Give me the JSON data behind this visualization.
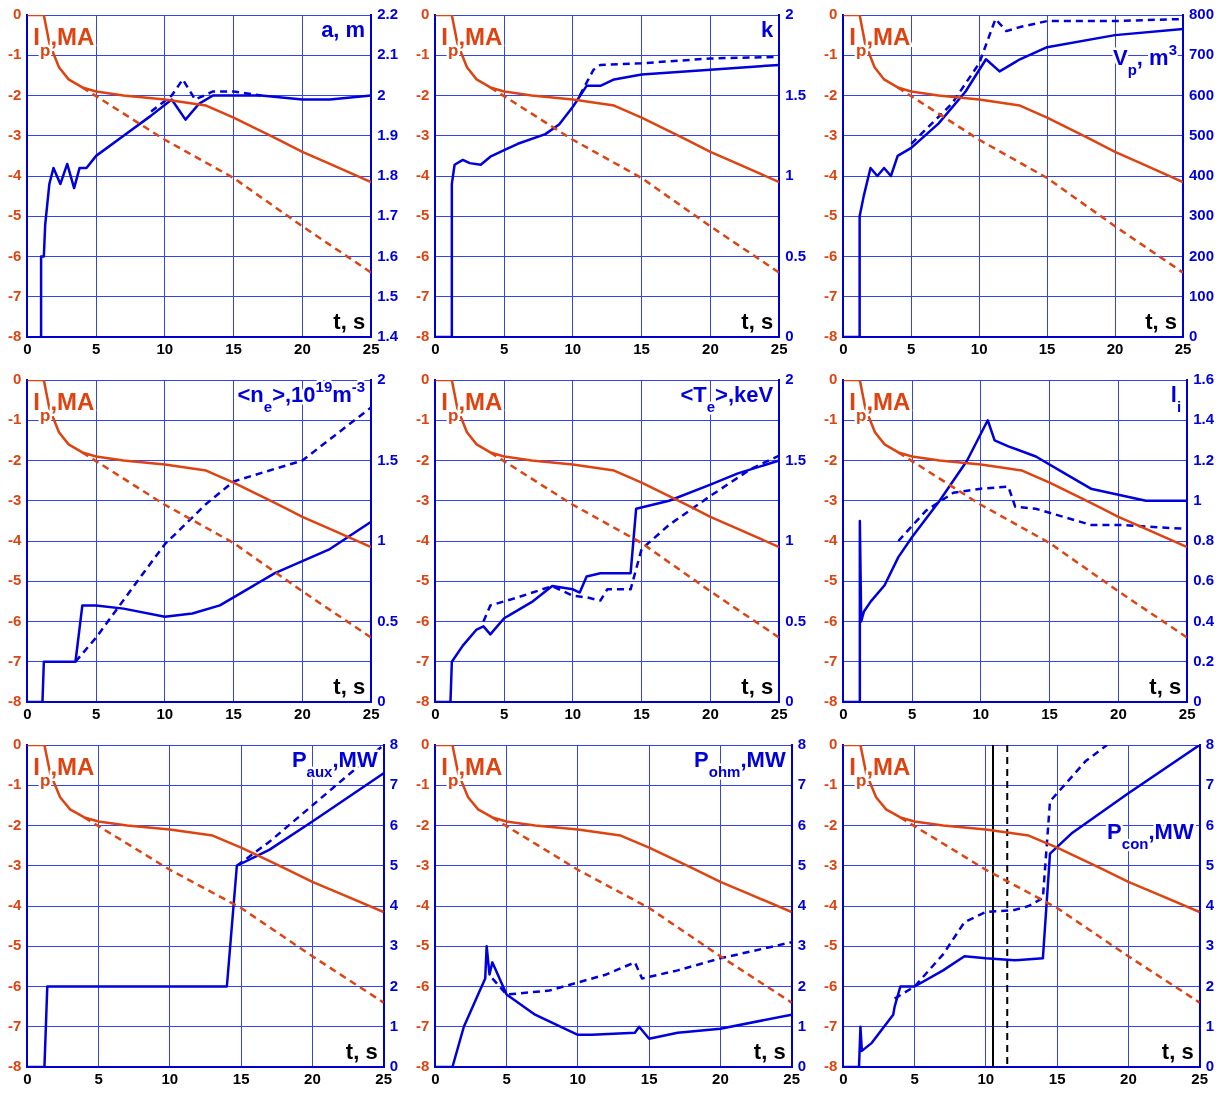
{
  "chart_data": [
    {
      "type": "line",
      "xlabel": "t, s",
      "ylabel": "I$_{p}$,MA",
      "y2label": "a, m",
      "xlim": [
        0,
        25
      ],
      "xticks": [
        0,
        5,
        10,
        15,
        20,
        25
      ],
      "ylim": [
        -8,
        0
      ],
      "yticks": [
        -8,
        -7,
        -6,
        -5,
        -4,
        -3,
        -2,
        -1,
        0
      ],
      "y2lim": [
        1.4,
        2.2
      ],
      "y2ticks": [
        1.4,
        1.5,
        1.6,
        1.7,
        1.8,
        1.9,
        2,
        2.1,
        2.2
      ],
      "grid": true,
      "marker": "none",
      "series": [
        {
          "color": "#dd4411",
          "line_style": "solid",
          "axis": "y",
          "x": [
            0,
            1.2,
            1.6,
            2.3,
            3,
            4,
            5,
            7,
            10,
            12,
            13,
            15,
            18,
            20,
            22,
            25
          ],
          "values": [
            0,
            0,
            -0.7,
            -1.3,
            -1.6,
            -1.8,
            -1.9,
            -2,
            -2.1,
            -2.2,
            -2.25,
            -2.55,
            -3.05,
            -3.4,
            -3.7,
            -4.15
          ]
        },
        {
          "color": "#dd4411",
          "line_style": "dashed",
          "axis": "y",
          "x": [
            4,
            10,
            15,
            20,
            25
          ],
          "values": [
            -1.8,
            -3.1,
            -4.05,
            -5.25,
            -6.4
          ]
        },
        {
          "color": "#0000dd",
          "line_style": "solid",
          "axis": "y2",
          "x": [
            1,
            1,
            1.2,
            1.3,
            1.6,
            1.9,
            2.4,
            2.9,
            3.4,
            3.8,
            4.3,
            5,
            7,
            9,
            10.5,
            11.5,
            12.5,
            13.5,
            17,
            20,
            22,
            25
          ],
          "values": [
            1.4,
            1.6,
            1.6,
            1.68,
            1.78,
            1.82,
            1.78,
            1.83,
            1.77,
            1.82,
            1.82,
            1.85,
            1.9,
            1.95,
            1.99,
            1.94,
            1.98,
            2,
            2,
            1.99,
            1.99,
            2
          ]
        },
        {
          "color": "#0000dd",
          "line_style": "dashed",
          "axis": "y2",
          "x": [
            9,
            10.5,
            11.3,
            12.2,
            13.5,
            15,
            17
          ],
          "values": [
            1.96,
            2,
            2.04,
            1.99,
            2.01,
            2.01,
            2
          ]
        }
      ]
    },
    {
      "type": "line",
      "xlabel": "t, s",
      "ylabel": "I$_{p}$,MA",
      "y2label": "k",
      "xlim": [
        0,
        25
      ],
      "xticks": [
        0,
        5,
        10,
        15,
        20,
        25
      ],
      "ylim": [
        -8,
        0
      ],
      "yticks": [
        -8,
        -7,
        -6,
        -5,
        -4,
        -3,
        -2,
        -1,
        0
      ],
      "y2lim": [
        0,
        2
      ],
      "y2ticks": [
        0,
        0.5,
        1,
        1.5,
        2
      ],
      "grid": true,
      "marker": "none",
      "series": [
        {
          "color": "#dd4411",
          "line_style": "solid",
          "axis": "y",
          "x": [
            0,
            1.2,
            1.6,
            2.3,
            3,
            4,
            5,
            7,
            10,
            12,
            13,
            15,
            18,
            20,
            22,
            25
          ],
          "values": [
            0,
            0,
            -0.7,
            -1.3,
            -1.6,
            -1.8,
            -1.9,
            -2,
            -2.1,
            -2.2,
            -2.25,
            -2.55,
            -3.05,
            -3.4,
            -3.7,
            -4.15
          ]
        },
        {
          "color": "#dd4411",
          "line_style": "dashed",
          "axis": "y",
          "x": [
            4,
            10,
            15,
            20,
            25
          ],
          "values": [
            -1.8,
            -3.1,
            -4.05,
            -5.25,
            -6.4
          ]
        },
        {
          "color": "#0000dd",
          "line_style": "solid",
          "axis": "y2",
          "x": [
            0,
            1.2,
            1.2,
            1.4,
            2,
            2.5,
            3.3,
            4,
            6,
            8,
            9,
            10,
            11,
            12,
            13,
            15,
            20,
            25
          ],
          "values": [
            0,
            0,
            0.95,
            1.07,
            1.1,
            1.08,
            1.07,
            1.12,
            1.2,
            1.26,
            1.32,
            1.43,
            1.56,
            1.56,
            1.6,
            1.63,
            1.66,
            1.69
          ]
        },
        {
          "color": "#0000dd",
          "line_style": "dashed",
          "axis": "y2",
          "x": [
            10.5,
            11.5,
            12,
            15,
            20,
            25
          ],
          "values": [
            1.5,
            1.66,
            1.69,
            1.7,
            1.73,
            1.74
          ]
        }
      ]
    },
    {
      "type": "line",
      "xlabel": "t, s",
      "ylabel": "I$_{p}$,MA",
      "y2label": "V$_{p}$, m$^{3}$",
      "xlim": [
        0,
        25
      ],
      "xticks": [
        0,
        5,
        10,
        15,
        20,
        25
      ],
      "ylim": [
        -8,
        0
      ],
      "yticks": [
        -8,
        -7,
        -6,
        -5,
        -4,
        -3,
        -2,
        -1,
        0
      ],
      "y2lim": [
        0,
        800
      ],
      "y2ticks": [
        0,
        100,
        200,
        300,
        400,
        500,
        600,
        700,
        800
      ],
      "grid": true,
      "marker": "none",
      "series": [
        {
          "color": "#dd4411",
          "line_style": "solid",
          "axis": "y",
          "x": [
            0,
            1.2,
            1.6,
            2.3,
            3,
            4,
            5,
            7,
            10,
            12,
            13,
            15,
            18,
            20,
            22,
            25
          ],
          "values": [
            0,
            0,
            -0.7,
            -1.3,
            -1.6,
            -1.8,
            -1.9,
            -2,
            -2.1,
            -2.2,
            -2.25,
            -2.55,
            -3.05,
            -3.4,
            -3.7,
            -4.15
          ]
        },
        {
          "color": "#dd4411",
          "line_style": "dashed",
          "axis": "y",
          "x": [
            4,
            10,
            15,
            20,
            25
          ],
          "values": [
            -1.8,
            -3.1,
            -4.05,
            -5.25,
            -6.4
          ]
        },
        {
          "color": "#0000dd",
          "line_style": "solid",
          "axis": "y2",
          "x": [
            0,
            1.2,
            1.2,
            1.5,
            2,
            2.5,
            3,
            3.5,
            4,
            5,
            7,
            9,
            10.5,
            11.5,
            12,
            13,
            15,
            20,
            25
          ],
          "values": [
            0,
            0,
            300,
            350,
            420,
            400,
            420,
            400,
            450,
            470,
            530,
            610,
            690,
            660,
            670,
            690,
            720,
            750,
            765
          ]
        },
        {
          "color": "#0000dd",
          "line_style": "dashed",
          "axis": "y2",
          "x": [
            5,
            8,
            10,
            11.2,
            12,
            13,
            15,
            20,
            25
          ],
          "values": [
            480,
            580,
            680,
            790,
            760,
            770,
            785,
            785,
            790
          ]
        }
      ]
    },
    {
      "type": "line",
      "xlabel": "t, s",
      "ylabel": "I$_{p}$,MA",
      "y2label": "<n$_{e}$>,10$^{19}$m$^{-3}$",
      "xlim": [
        0,
        25
      ],
      "xticks": [
        0,
        5,
        10,
        15,
        20,
        25
      ],
      "ylim": [
        -8,
        0
      ],
      "yticks": [
        -8,
        -7,
        -6,
        -5,
        -4,
        -3,
        -2,
        -1,
        0
      ],
      "y2lim": [
        0,
        2
      ],
      "y2ticks": [
        0,
        0.5,
        1,
        1.5,
        2
      ],
      "grid": true,
      "marker": "none",
      "series": [
        {
          "color": "#dd4411",
          "line_style": "solid",
          "axis": "y",
          "x": [
            0,
            1.2,
            1.6,
            2.3,
            3,
            4,
            5,
            7,
            10,
            12,
            13,
            15,
            18,
            20,
            22,
            25
          ],
          "values": [
            0,
            0,
            -0.7,
            -1.3,
            -1.6,
            -1.8,
            -1.9,
            -2,
            -2.1,
            -2.2,
            -2.25,
            -2.55,
            -3.05,
            -3.4,
            -3.7,
            -4.15
          ]
        },
        {
          "color": "#dd4411",
          "line_style": "dashed",
          "axis": "y",
          "x": [
            4,
            10,
            15,
            20,
            25
          ],
          "values": [
            -1.8,
            -3.1,
            -4.05,
            -5.25,
            -6.4
          ]
        },
        {
          "color": "#0000dd",
          "line_style": "solid",
          "axis": "y2",
          "x": [
            0,
            1.1,
            1.2,
            1.5,
            3.5,
            4,
            5,
            7,
            10,
            12,
            14,
            18,
            22,
            25
          ],
          "values": [
            0,
            0,
            0.25,
            0.25,
            0.25,
            0.6,
            0.6,
            0.58,
            0.53,
            0.55,
            0.6,
            0.8,
            0.95,
            1.12
          ]
        },
        {
          "color": "#0000dd",
          "line_style": "dashed",
          "axis": "y2",
          "x": [
            3.5,
            5,
            8,
            10,
            13,
            15,
            20,
            25
          ],
          "values": [
            0.25,
            0.4,
            0.75,
            0.98,
            1.23,
            1.37,
            1.5,
            1.83
          ]
        }
      ]
    },
    {
      "type": "line",
      "xlabel": "t, s",
      "ylabel": "I$_{p}$,MA",
      "y2label": "<T$_{e}$>,keV",
      "xlim": [
        0,
        25
      ],
      "xticks": [
        0,
        5,
        10,
        15,
        20,
        25
      ],
      "ylim": [
        -8,
        0
      ],
      "yticks": [
        -8,
        -7,
        -6,
        -5,
        -4,
        -3,
        -2,
        -1,
        0
      ],
      "y2lim": [
        0,
        2
      ],
      "y2ticks": [
        0,
        0.5,
        1,
        1.5,
        2
      ],
      "grid": true,
      "marker": "none",
      "series": [
        {
          "color": "#dd4411",
          "line_style": "solid",
          "axis": "y",
          "x": [
            0,
            1.2,
            1.6,
            2.3,
            3,
            4,
            5,
            7,
            10,
            12,
            13,
            15,
            18,
            20,
            22,
            25
          ],
          "values": [
            0,
            0,
            -0.7,
            -1.3,
            -1.6,
            -1.8,
            -1.9,
            -2,
            -2.1,
            -2.2,
            -2.25,
            -2.55,
            -3.05,
            -3.4,
            -3.7,
            -4.15
          ]
        },
        {
          "color": "#dd4411",
          "line_style": "dashed",
          "axis": "y",
          "x": [
            4,
            10,
            15,
            20,
            25
          ],
          "values": [
            -1.8,
            -3.1,
            -4.05,
            -5.25,
            -6.4
          ]
        },
        {
          "color": "#0000dd",
          "line_style": "solid",
          "axis": "y2",
          "x": [
            0,
            1.1,
            1.2,
            2,
            3,
            3.5,
            4,
            5,
            7,
            8.5,
            10,
            10.5,
            11,
            12,
            14.2,
            14.6,
            17,
            20,
            22,
            25
          ],
          "values": [
            0,
            0,
            0.25,
            0.35,
            0.45,
            0.47,
            0.42,
            0.52,
            0.62,
            0.72,
            0.7,
            0.68,
            0.78,
            0.8,
            0.8,
            1.2,
            1.25,
            1.35,
            1.42,
            1.5
          ]
        },
        {
          "color": "#0000dd",
          "line_style": "dashed",
          "axis": "y2",
          "x": [
            3.5,
            4,
            6,
            8.5,
            10,
            11,
            12,
            12.5,
            14.2,
            15,
            17,
            20,
            23,
            25
          ],
          "values": [
            0.5,
            0.6,
            0.65,
            0.72,
            0.66,
            0.65,
            0.63,
            0.7,
            0.7,
            0.95,
            1.1,
            1.28,
            1.45,
            1.53
          ]
        }
      ]
    },
    {
      "type": "line",
      "xlabel": "t, s",
      "ylabel": "I$_{p}$,MA",
      "y2label": "l$_{i}$",
      "xlim": [
        0,
        25
      ],
      "xticks": [
        0,
        5,
        10,
        15,
        20,
        25
      ],
      "ylim": [
        -8,
        0
      ],
      "yticks": [
        -8,
        -7,
        -6,
        -5,
        -4,
        -3,
        -2,
        -1,
        0
      ],
      "y2lim": [
        0,
        1.6
      ],
      "y2ticks": [
        0,
        0.2,
        0.4,
        0.6,
        0.8,
        1,
        1.2,
        1.4,
        1.6
      ],
      "grid": true,
      "marker": "none",
      "series": [
        {
          "color": "#dd4411",
          "line_style": "solid",
          "axis": "y",
          "x": [
            0,
            1.2,
            1.6,
            2.3,
            3,
            4,
            5,
            7,
            10,
            12,
            13,
            15,
            18,
            20,
            22,
            25
          ],
          "values": [
            0,
            0,
            -0.7,
            -1.3,
            -1.6,
            -1.8,
            -1.9,
            -2,
            -2.1,
            -2.2,
            -2.25,
            -2.55,
            -3.05,
            -3.4,
            -3.7,
            -4.15
          ]
        },
        {
          "color": "#dd4411",
          "line_style": "dashed",
          "axis": "y",
          "x": [
            4,
            10,
            15,
            20,
            25
          ],
          "values": [
            -1.8,
            -3.1,
            -4.05,
            -5.25,
            -6.4
          ]
        },
        {
          "color": "#0000dd",
          "line_style": "solid",
          "axis": "y2",
          "x": [
            0,
            1.2,
            1.2,
            1.3,
            1.5,
            2,
            3,
            4,
            5,
            7,
            9,
            10.5,
            11,
            12,
            14,
            16,
            18,
            20,
            22,
            25
          ],
          "values": [
            0,
            0,
            0.9,
            0.4,
            0.45,
            0.5,
            0.58,
            0.72,
            0.82,
            1,
            1.2,
            1.4,
            1.3,
            1.27,
            1.22,
            1.14,
            1.06,
            1.03,
            1,
            1
          ]
        },
        {
          "color": "#0000dd",
          "line_style": "dashed",
          "axis": "y2",
          "x": [
            4,
            6,
            8,
            10,
            12,
            12.5,
            14,
            16,
            18,
            20,
            25
          ],
          "values": [
            0.8,
            0.95,
            1.04,
            1.06,
            1.07,
            0.97,
            0.96,
            0.92,
            0.88,
            0.88,
            0.86
          ]
        }
      ]
    },
    {
      "type": "line",
      "xlabel": "t, s",
      "ylabel": "I$_{p}$,MA",
      "y2label": "P$_{aux}$,MW",
      "xlim": [
        0,
        25
      ],
      "xticks": [
        0,
        5,
        10,
        15,
        20,
        25
      ],
      "ylim": [
        -8,
        0
      ],
      "yticks": [
        -8,
        -7,
        -6,
        -5,
        -4,
        -3,
        -2,
        -1,
        0
      ],
      "y2lim": [
        0,
        8
      ],
      "y2ticks": [
        0,
        1,
        2,
        3,
        4,
        5,
        6,
        7,
        8
      ],
      "grid": true,
      "marker": "none",
      "series": [
        {
          "color": "#dd4411",
          "line_style": "solid",
          "axis": "y",
          "x": [
            0,
            1.2,
            1.6,
            2.3,
            3,
            4,
            5,
            7,
            10,
            12,
            13,
            15,
            18,
            20,
            22,
            25
          ],
          "values": [
            0,
            0,
            -0.7,
            -1.3,
            -1.6,
            -1.8,
            -1.9,
            -2,
            -2.1,
            -2.2,
            -2.25,
            -2.55,
            -3.05,
            -3.4,
            -3.7,
            -4.15
          ]
        },
        {
          "color": "#dd4411",
          "line_style": "dashed",
          "axis": "y",
          "x": [
            4,
            10,
            15,
            20,
            25
          ],
          "values": [
            -1.8,
            -3.1,
            -4.05,
            -5.25,
            -6.4
          ]
        },
        {
          "color": "#0000dd",
          "line_style": "solid",
          "axis": "y2",
          "x": [
            0,
            1.2,
            1.4,
            14,
            14.7,
            17,
            20,
            25
          ],
          "values": [
            0,
            0,
            2,
            2,
            5,
            5.4,
            6.1,
            7.3
          ]
        },
        {
          "color": "#0000dd",
          "line_style": "dashed",
          "axis": "y2",
          "x": [
            14.7,
            17,
            20,
            25
          ],
          "values": [
            5,
            5.6,
            6.5,
            8
          ]
        }
      ]
    },
    {
      "type": "line",
      "xlabel": "t, s",
      "ylabel": "I$_{p}$,MA",
      "y2label": "P$_{ohm}$,MW",
      "xlim": [
        0,
        25
      ],
      "xticks": [
        0,
        5,
        10,
        15,
        20,
        25
      ],
      "ylim": [
        -8,
        0
      ],
      "yticks": [
        -8,
        -7,
        -6,
        -5,
        -4,
        -3,
        -2,
        -1,
        0
      ],
      "y2lim": [
        0,
        8
      ],
      "y2ticks": [
        0,
        1,
        2,
        3,
        4,
        5,
        6,
        7,
        8
      ],
      "grid": true,
      "marker": "none",
      "series": [
        {
          "color": "#dd4411",
          "line_style": "solid",
          "axis": "y",
          "x": [
            0,
            1.2,
            1.6,
            2.3,
            3,
            4,
            5,
            7,
            10,
            12,
            13,
            15,
            18,
            20,
            22,
            25
          ],
          "values": [
            0,
            0,
            -0.7,
            -1.3,
            -1.6,
            -1.8,
            -1.9,
            -2,
            -2.1,
            -2.2,
            -2.25,
            -2.55,
            -3.05,
            -3.4,
            -3.7,
            -4.15
          ]
        },
        {
          "color": "#dd4411",
          "line_style": "dashed",
          "axis": "y",
          "x": [
            4,
            10,
            15,
            20,
            25
          ],
          "values": [
            -1.8,
            -3.1,
            -4.05,
            -5.25,
            -6.4
          ]
        },
        {
          "color": "#0000dd",
          "line_style": "solid",
          "axis": "y2",
          "x": [
            0,
            1.2,
            2,
            3,
            3.5,
            3.6,
            3.8,
            4,
            5,
            7,
            10,
            11,
            14,
            14.3,
            15,
            17,
            20,
            25
          ],
          "values": [
            0,
            0,
            1,
            1.8,
            2.2,
            3,
            2.3,
            2.6,
            1.8,
            1.3,
            0.8,
            0.8,
            0.85,
            1,
            0.7,
            0.85,
            0.95,
            1.3
          ]
        },
        {
          "color": "#0000dd",
          "line_style": "dashed",
          "axis": "y2",
          "x": [
            4,
            5,
            8,
            10,
            12,
            14,
            14.5,
            17,
            20,
            25
          ],
          "values": [
            2.2,
            1.8,
            1.9,
            2.1,
            2.3,
            2.6,
            2.2,
            2.4,
            2.7,
            3.1
          ]
        }
      ]
    },
    {
      "type": "line",
      "xlabel": "t, s",
      "ylabel": "I$_{p}$,MA",
      "y2label": "P$_{con}$,MW",
      "xlim": [
        0,
        25
      ],
      "xticks": [
        0,
        5,
        10,
        15,
        20,
        25
      ],
      "ylim": [
        -8,
        0
      ],
      "yticks": [
        -8,
        -7,
        -6,
        -5,
        -4,
        -3,
        -2,
        -1,
        0
      ],
      "y2lim": [
        0,
        8
      ],
      "y2ticks": [
        0,
        1,
        2,
        3,
        4,
        5,
        6,
        7,
        8
      ],
      "grid": true,
      "marker": "none",
      "ref_lines": [
        {
          "axis": "x",
          "value": 10.5,
          "color": "#000000",
          "line_style": "solid"
        },
        {
          "axis": "x",
          "value": 11.5,
          "color": "#000000",
          "line_style": "dashed"
        }
      ],
      "series": [
        {
          "color": "#dd4411",
          "line_style": "solid",
          "axis": "y",
          "x": [
            0,
            1.2,
            1.6,
            2.3,
            3,
            4,
            5,
            7,
            10,
            12,
            13,
            15,
            18,
            20,
            22,
            25
          ],
          "values": [
            0,
            0,
            -0.7,
            -1.3,
            -1.6,
            -1.8,
            -1.9,
            -2,
            -2.1,
            -2.2,
            -2.25,
            -2.55,
            -3.05,
            -3.4,
            -3.7,
            -4.15
          ]
        },
        {
          "color": "#dd4411",
          "line_style": "dashed",
          "axis": "y",
          "x": [
            4,
            10,
            15,
            20,
            25
          ],
          "values": [
            -1.8,
            -3.1,
            -4.05,
            -5.25,
            -6.4
          ]
        },
        {
          "color": "#0000dd",
          "line_style": "solid",
          "axis": "y2",
          "x": [
            0,
            1.1,
            1.2,
            1.3,
            2,
            3.5,
            3.6,
            4,
            5,
            7,
            8.5,
            10,
            12,
            14,
            14.5,
            16,
            20,
            25
          ],
          "values": [
            0,
            0,
            1,
            0.4,
            0.6,
            1.3,
            1.5,
            2,
            2,
            2.4,
            2.75,
            2.7,
            2.65,
            2.7,
            5.3,
            5.8,
            6.8,
            8
          ]
        },
        {
          "color": "#0000dd",
          "line_style": "dashed",
          "axis": "y2",
          "x": [
            3.6,
            5,
            7,
            8.5,
            10,
            12,
            13,
            14,
            14.5,
            15,
            17,
            18.5
          ],
          "values": [
            1.7,
            2,
            2.8,
            3.6,
            3.85,
            3.9,
            4,
            4.2,
            6.6,
            6.8,
            7.6,
            8
          ]
        }
      ]
    }
  ]
}
